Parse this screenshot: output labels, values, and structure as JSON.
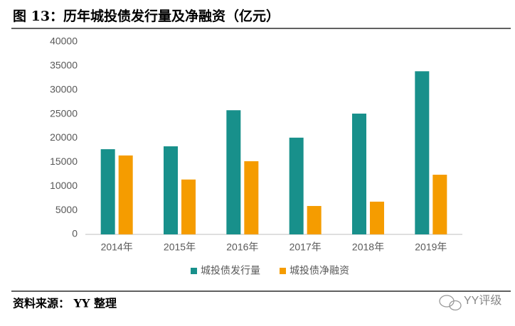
{
  "title": "图 13：历年城投债发行量及净融资（亿元）",
  "chart_data": {
    "type": "bar",
    "categories": [
      "2014年",
      "2015年",
      "2016年",
      "2017年",
      "2018年",
      "2019年"
    ],
    "series": [
      {
        "name": "城投债发行量",
        "color": "#18908b",
        "values": [
          17700,
          18300,
          25800,
          20100,
          25100,
          33900
        ]
      },
      {
        "name": "城投债净融资",
        "color": "#f59c00",
        "values": [
          16400,
          11400,
          15200,
          5900,
          6800,
          12400
        ]
      }
    ],
    "ylim": [
      0,
      40000
    ],
    "yticks": [
      0,
      5000,
      10000,
      15000,
      20000,
      25000,
      30000,
      35000,
      40000
    ],
    "grid": false,
    "legend": "bottom"
  },
  "source": "资料来源： YY 整理",
  "watermark": "YY评级"
}
